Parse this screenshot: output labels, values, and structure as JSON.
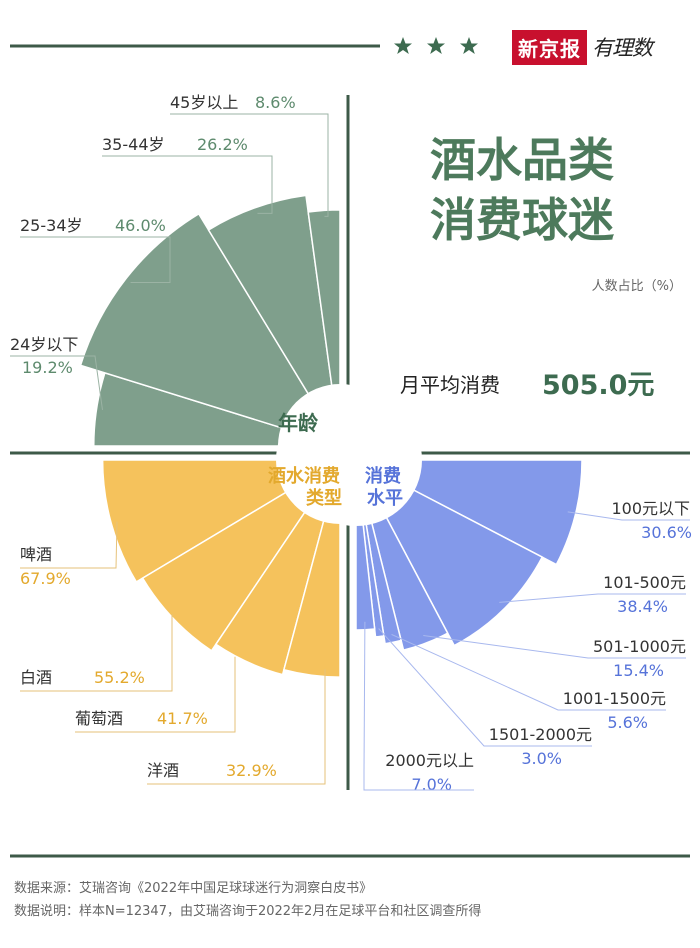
{
  "brand": {
    "name": "新京报",
    "column": "有理数"
  },
  "title_lines": [
    "酒水品类",
    "消费球迷"
  ],
  "unit": "人数占比（%）",
  "avg_spend": {
    "label": "月平均消费",
    "value": "505.0元"
  },
  "colors": {
    "age": "#7f9f8c",
    "drink": "#f5c25c",
    "spend": "#8399ea",
    "title": "#4d7a5c",
    "label_dark": "#333333",
    "value_green": "#5d8a6d",
    "value_gold": "#e3a92d",
    "value_blue": "#5673d9"
  },
  "chart_data": [
    {
      "type": "pie",
      "title": "年龄",
      "categories": [
        "45岁以上",
        "35-44岁",
        "25-34岁",
        "24岁以下"
      ],
      "values": [
        8.6,
        26.2,
        46.0,
        19.2
      ],
      "value_labels": [
        "8.6%",
        "26.2%",
        "46.0%",
        "19.2%"
      ]
    },
    {
      "type": "pie",
      "title": "酒水消费类型",
      "categories": [
        "啤酒",
        "白酒",
        "葡萄酒",
        "洋酒"
      ],
      "values": [
        67.9,
        55.2,
        41.7,
        32.9
      ],
      "value_labels": [
        "67.9%",
        "55.2%",
        "41.7%",
        "32.9%"
      ]
    },
    {
      "type": "pie",
      "title": "消费水平",
      "categories": [
        "100元以下",
        "101-500元",
        "501-1000元",
        "1001-1500元",
        "1501-2000元",
        "2000元以上"
      ],
      "values": [
        30.6,
        38.4,
        15.4,
        5.6,
        3.0,
        7.0
      ],
      "value_labels": [
        "30.6%",
        "38.4%",
        "15.4%",
        "5.6%",
        "3.0%",
        "7.0%"
      ]
    }
  ],
  "footer": {
    "source": "数据来源：艾瑞咨询《2022年中国足球球迷行为洞察白皮书》",
    "note": "数据说明：样本N=12347，由艾瑞咨询于2022年2月在足球平台和社区调查所得"
  }
}
